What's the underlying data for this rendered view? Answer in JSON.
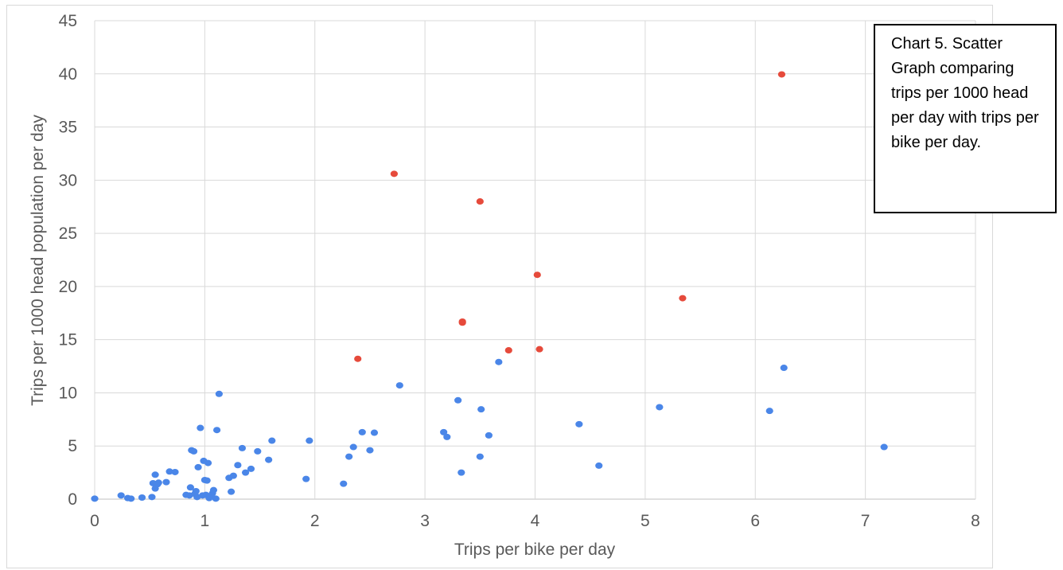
{
  "chart_data": {
    "type": "scatter",
    "title": "",
    "xlabel": "Trips per bike per day",
    "ylabel": "Trips per 1000 head population per day",
    "xlim": [
      0,
      8
    ],
    "ylim": [
      0,
      45
    ],
    "x_ticks": [
      0,
      1,
      2,
      3,
      4,
      5,
      6,
      7,
      8
    ],
    "y_ticks": [
      0,
      5,
      10,
      15,
      20,
      25,
      30,
      35,
      40,
      45
    ],
    "grid": true,
    "annotation": "Chart 5. Scatter Graph comparing trips per 1000 head per day with trips per bike per day.",
    "series": [
      {
        "color": "#4a86e8",
        "points": [
          [
            0.0,
            0.05
          ],
          [
            0.24,
            0.35
          ],
          [
            0.3,
            0.1
          ],
          [
            0.33,
            0.05
          ],
          [
            0.43,
            0.15
          ],
          [
            0.52,
            0.2
          ],
          [
            0.53,
            1.5
          ],
          [
            0.55,
            2.3
          ],
          [
            0.55,
            1.0
          ],
          [
            0.57,
            1.4
          ],
          [
            0.58,
            1.55
          ],
          [
            0.65,
            1.6
          ],
          [
            0.68,
            2.6
          ],
          [
            0.73,
            2.55
          ],
          [
            0.83,
            0.4
          ],
          [
            0.86,
            0.35
          ],
          [
            0.87,
            1.1
          ],
          [
            0.88,
            4.6
          ],
          [
            0.9,
            4.5
          ],
          [
            0.91,
            0.5
          ],
          [
            0.92,
            0.75
          ],
          [
            0.93,
            0.2
          ],
          [
            0.94,
            3.0
          ],
          [
            0.96,
            6.7
          ],
          [
            0.98,
            0.35
          ],
          [
            0.99,
            3.6
          ],
          [
            1.0,
            1.8
          ],
          [
            1.01,
            0.4
          ],
          [
            1.02,
            1.75
          ],
          [
            1.03,
            3.4
          ],
          [
            1.04,
            0.1
          ],
          [
            1.05,
            0.3
          ],
          [
            1.07,
            0.55
          ],
          [
            1.08,
            0.85
          ],
          [
            1.1,
            0.05
          ],
          [
            1.11,
            6.5
          ],
          [
            1.13,
            9.9
          ],
          [
            1.22,
            2.0
          ],
          [
            1.24,
            0.7
          ],
          [
            1.26,
            2.2
          ],
          [
            1.3,
            3.2
          ],
          [
            1.34,
            4.8
          ],
          [
            1.37,
            2.5
          ],
          [
            1.42,
            2.85
          ],
          [
            1.48,
            4.5
          ],
          [
            1.58,
            3.7
          ],
          [
            1.61,
            5.5
          ],
          [
            1.92,
            1.9
          ],
          [
            1.95,
            5.5
          ],
          [
            2.26,
            1.45
          ],
          [
            2.31,
            4.0
          ],
          [
            2.35,
            4.9
          ],
          [
            2.43,
            6.3
          ],
          [
            2.5,
            4.6
          ],
          [
            2.54,
            6.25
          ],
          [
            2.77,
            10.7
          ],
          [
            3.17,
            6.3
          ],
          [
            3.2,
            5.85
          ],
          [
            3.3,
            9.3
          ],
          [
            3.33,
            2.5
          ],
          [
            3.5,
            4.0
          ],
          [
            3.51,
            8.45
          ],
          [
            3.58,
            6.0
          ],
          [
            3.67,
            12.9
          ],
          [
            4.4,
            7.05
          ],
          [
            4.58,
            3.15
          ],
          [
            5.13,
            8.65
          ],
          [
            6.13,
            8.3
          ],
          [
            6.26,
            12.35
          ],
          [
            7.17,
            4.9
          ]
        ]
      },
      {
        "color": "#e64a3b",
        "points": [
          [
            2.39,
            13.2
          ],
          [
            2.72,
            30.6
          ],
          [
            3.34,
            16.6
          ],
          [
            3.34,
            16.7
          ],
          [
            3.5,
            28.0
          ],
          [
            3.76,
            14.0
          ],
          [
            4.02,
            21.1
          ],
          [
            4.04,
            14.1
          ],
          [
            5.34,
            18.9
          ],
          [
            6.24,
            39.95
          ]
        ]
      }
    ]
  }
}
